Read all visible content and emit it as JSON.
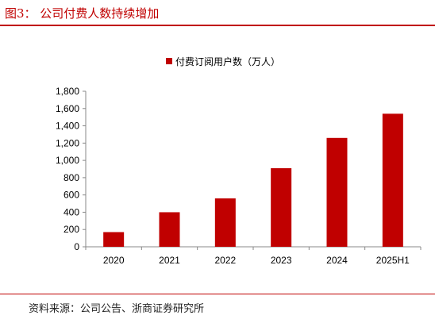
{
  "header": {
    "title": "图3：   公司付费人数持续增加"
  },
  "footer": {
    "source": "资料来源：公司公告、浙商证券研究所"
  },
  "colors": {
    "accent": "#c00000",
    "bar": "#c00000",
    "axis": "#888888",
    "text": "#000000"
  },
  "chart_data": {
    "type": "bar",
    "categories": [
      "2020",
      "2021",
      "2022",
      "2023",
      "2024",
      "2025H1"
    ],
    "series": [
      {
        "name": "付费订阅用户数（万人）",
        "values": [
          170,
          400,
          560,
          910,
          1260,
          1540
        ]
      }
    ],
    "yticks": [
      "0",
      "200",
      "400",
      "600",
      "800",
      "1,000",
      "1,200",
      "1,400",
      "1,600",
      "1,800"
    ],
    "ylim": [
      0,
      1800
    ],
    "grid": false,
    "legend": "top-center"
  }
}
